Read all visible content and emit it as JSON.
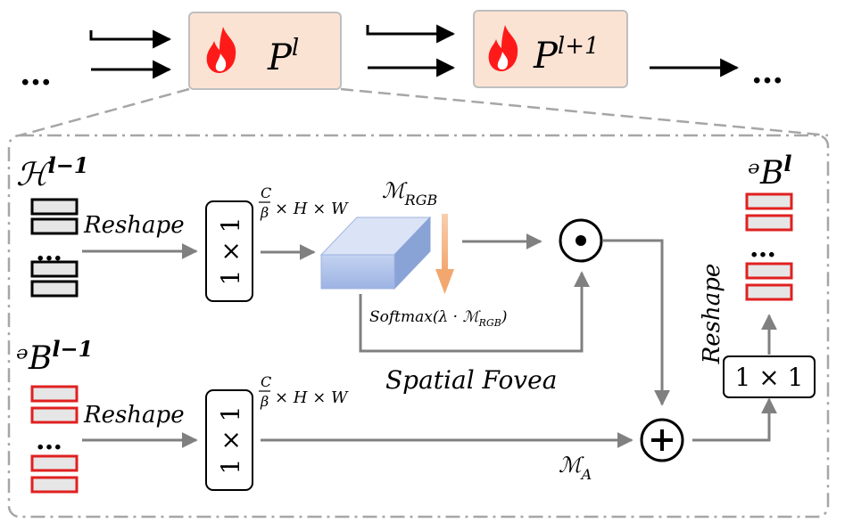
{
  "top_row": {
    "ellipsis_left": "…",
    "ellipsis_right": "…",
    "block1": {
      "base": "P",
      "sup": "l"
    },
    "block2": {
      "base": "P",
      "sup": "l+1"
    },
    "fire_icon_color": "#ff1a1a"
  },
  "detail": {
    "h_input": {
      "base": "ℋ",
      "sup": "l−1"
    },
    "p_input": {
      "base": "ᵊB",
      "sup": "l−1"
    },
    "p_output": {
      "base": "ᵊB",
      "sup": "l"
    },
    "reshape_label": "Reshape",
    "conv_label": "1 × 1",
    "shape_frac_num": "C",
    "shape_frac_den": "β",
    "shape_rest": "× H × W",
    "m_rgb": {
      "base": "ℳ",
      "sub": "RGB"
    },
    "softmax": {
      "pre": "Softmax(λ · ℳ",
      "sub": "RGB",
      "post": ")"
    },
    "spatial_fovea": "Spatial Fovea",
    "m_a": {
      "base": "ℳ",
      "sub": "A"
    },
    "dot_op": "⊙",
    "plus_op": "+",
    "ellipsis": "…"
  },
  "colors": {
    "block_fill": "#fbe3d4",
    "block_stroke": "#bfbfbf",
    "red": "#e02020",
    "token_fill": "#e6e6e6",
    "arrow_gray": "#808080",
    "dash_gray": "#a6a6a6",
    "orange_arrow": "#f5b88a",
    "cube_front": "#a9bde6",
    "cube_top": "#dbe4f7",
    "cube_side": "#8aa3d6"
  }
}
